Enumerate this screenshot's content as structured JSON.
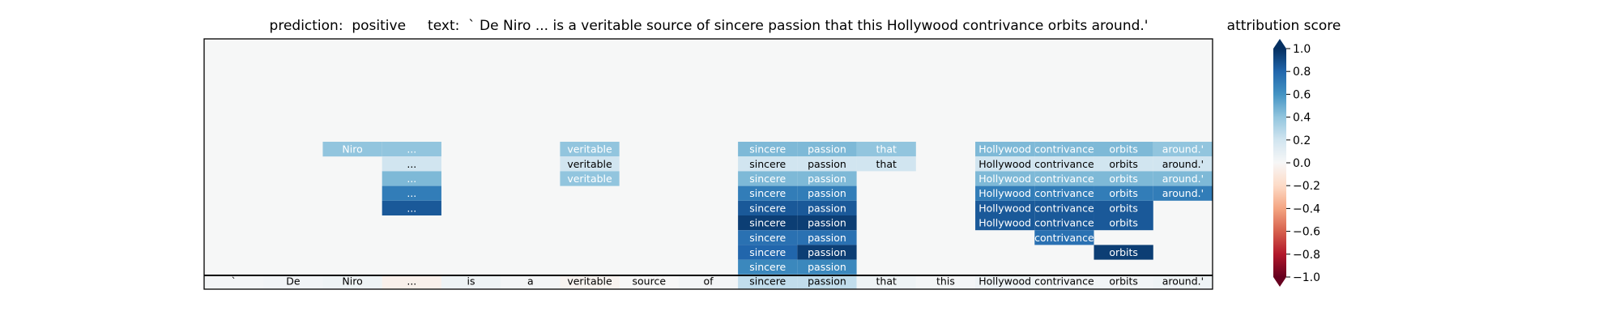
{
  "title": "prediction:  positive     text:  ` De Niro ... is a veritable source of sincere passion that this Hollywood contrivance orbits around.'",
  "colorbar": {
    "label": "attribution score",
    "ticks": [
      "1.0",
      "0.8",
      "0.6",
      "0.4",
      "0.2",
      "0.0",
      "−0.2",
      "−0.4",
      "−0.6",
      "−0.8",
      "−1.0"
    ],
    "tick_values": [
      1.0,
      0.8,
      0.6,
      0.4,
      0.2,
      0.0,
      -0.2,
      -0.4,
      -0.6,
      -0.8,
      -1.0
    ],
    "range": [
      -1.0,
      1.0
    ],
    "colormap": "RdBu"
  },
  "chart_data": {
    "type": "heatmap",
    "prediction": "positive",
    "text": "` De Niro ... is a veritable source of sincere passion that this Hollywood contrivance orbits around.'",
    "tokens": [
      "`",
      "De",
      "Niro",
      "...",
      "is",
      "a",
      "veritable",
      "source",
      "of",
      "sincere",
      "passion",
      "that",
      "this",
      "Hollywood",
      "contrivance",
      "orbits",
      "around.'"
    ],
    "bottom_row_scores": [
      0.02,
      0.03,
      0.05,
      -0.05,
      0.05,
      0.02,
      -0.03,
      0.0,
      0.02,
      0.25,
      0.25,
      0.05,
      0.02,
      0.05,
      0.03,
      0.03,
      0.05
    ],
    "stack_rows": [
      [
        null,
        null,
        0.4,
        0.4,
        null,
        null,
        0.4,
        null,
        null,
        0.45,
        0.45,
        0.4,
        null,
        0.45,
        0.45,
        0.45,
        0.4
      ],
      [
        null,
        null,
        null,
        0.2,
        null,
        null,
        0.2,
        null,
        null,
        0.2,
        0.2,
        0.2,
        null,
        0.2,
        0.2,
        0.2,
        0.2
      ],
      [
        null,
        null,
        null,
        0.45,
        null,
        null,
        0.4,
        null,
        null,
        0.45,
        0.45,
        null,
        null,
        0.45,
        0.45,
        0.45,
        0.45
      ],
      [
        null,
        null,
        null,
        0.7,
        null,
        null,
        null,
        null,
        null,
        0.7,
        0.7,
        null,
        null,
        0.7,
        0.7,
        0.7,
        0.7
      ],
      [
        null,
        null,
        null,
        0.85,
        null,
        null,
        null,
        null,
        null,
        0.85,
        0.85,
        null,
        null,
        0.85,
        0.85,
        0.85,
        null
      ],
      [
        null,
        null,
        null,
        null,
        null,
        null,
        null,
        null,
        null,
        0.95,
        0.95,
        null,
        null,
        0.85,
        0.85,
        0.85,
        null
      ],
      [
        null,
        null,
        null,
        null,
        null,
        null,
        null,
        null,
        null,
        0.75,
        0.75,
        null,
        null,
        null,
        0.75,
        null,
        null
      ],
      [
        null,
        null,
        null,
        null,
        null,
        null,
        null,
        null,
        null,
        0.8,
        0.95,
        null,
        null,
        null,
        null,
        0.95,
        null
      ],
      [
        null,
        null,
        null,
        null,
        null,
        null,
        null,
        null,
        null,
        0.65,
        0.65,
        null,
        null,
        null,
        null,
        null,
        null
      ]
    ],
    "grid": false
  }
}
